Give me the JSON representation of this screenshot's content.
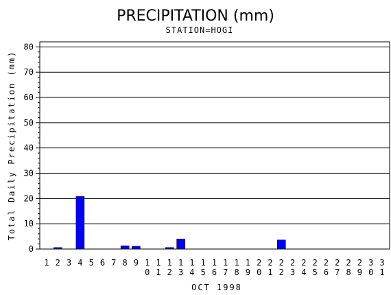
{
  "chart_data": {
    "type": "bar",
    "title": "PRECIPITATION (mm)",
    "subtitle": "STATION=HOGI",
    "xlabel": "OCT 1998",
    "ylabel": "Total Daily Precipitation (mm)",
    "categories": [
      "1",
      "2",
      "3",
      "4",
      "5",
      "6",
      "7",
      "8",
      "9",
      "10",
      "11",
      "12",
      "13",
      "14",
      "15",
      "16",
      "17",
      "18",
      "19",
      "20",
      "21",
      "22",
      "23",
      "24",
      "25",
      "26",
      "27",
      "28",
      "29",
      "30",
      "31"
    ],
    "values": [
      0,
      0.6,
      0,
      20.8,
      0,
      0,
      0,
      1.3,
      1.1,
      0,
      0,
      0.6,
      4.0,
      0,
      0,
      0,
      0,
      0,
      0,
      0,
      0,
      3.6,
      0,
      0,
      0,
      0,
      0,
      0,
      0,
      0,
      0
    ],
    "ylim": [
      0,
      82
    ],
    "yticks": [
      0,
      10,
      20,
      30,
      40,
      50,
      60,
      70,
      80
    ],
    "grid": true,
    "bar_color": "#0000ff"
  }
}
